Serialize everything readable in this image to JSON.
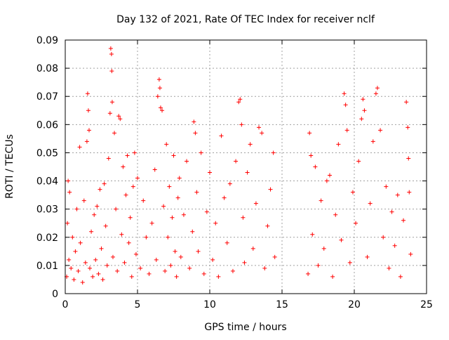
{
  "chart_data": {
    "type": "scatter",
    "title": "Day 132 of 2021, Rate Of TEC Index for receiver nclf",
    "xlabel": "GPS time / hours",
    "ylabel": "ROTI / TECUs",
    "xlim": [
      0,
      25
    ],
    "ylim": [
      0,
      0.09
    ],
    "x_ticks": [
      0,
      5,
      10,
      15,
      20,
      25
    ],
    "x_tick_labels": [
      "0",
      "5",
      "10",
      "15",
      "20",
      "25"
    ],
    "y_ticks": [
      0,
      0.01,
      0.02,
      0.03,
      0.04,
      0.05,
      0.06,
      0.07,
      0.08,
      0.09
    ],
    "y_tick_labels": [
      "0",
      "0.01",
      "0.02",
      "0.03",
      "0.04",
      "0.05",
      "0.06",
      "0.07",
      "0.08",
      "0.09"
    ],
    "grid": true,
    "marker": "+",
    "color": "#ff0000",
    "data_gaps_hours": [
      [
        14.6,
        16.7
      ]
    ],
    "series": [
      {
        "name": "ROTI",
        "points": [
          [
            0.1,
            0.006
          ],
          [
            0.15,
            0.025
          ],
          [
            0.2,
            0.04
          ],
          [
            0.25,
            0.012
          ],
          [
            0.3,
            0.036
          ],
          [
            0.4,
            0.009
          ],
          [
            0.5,
            0.02
          ],
          [
            0.6,
            0.005
          ],
          [
            0.7,
            0.015
          ],
          [
            0.8,
            0.03
          ],
          [
            0.9,
            0.008
          ],
          [
            1.0,
            0.052
          ],
          [
            1.05,
            0.018
          ],
          [
            1.2,
            0.004
          ],
          [
            1.3,
            0.033
          ],
          [
            1.4,
            0.011
          ],
          [
            1.5,
            0.054
          ],
          [
            1.55,
            0.071
          ],
          [
            1.6,
            0.065
          ],
          [
            1.65,
            0.058
          ],
          [
            1.7,
            0.009
          ],
          [
            1.8,
            0.022
          ],
          [
            1.9,
            0.006
          ],
          [
            2.0,
            0.028
          ],
          [
            2.1,
            0.012
          ],
          [
            2.2,
            0.031
          ],
          [
            2.3,
            0.007
          ],
          [
            2.4,
            0.037
          ],
          [
            2.5,
            0.016
          ],
          [
            2.6,
            0.005
          ],
          [
            2.7,
            0.039
          ],
          [
            2.8,
            0.024
          ],
          [
            2.9,
            0.01
          ],
          [
            3.0,
            0.048
          ],
          [
            3.1,
            0.064
          ],
          [
            3.15,
            0.087
          ],
          [
            3.2,
            0.085
          ],
          [
            3.22,
            0.079
          ],
          [
            3.25,
            0.068
          ],
          [
            3.3,
            0.013
          ],
          [
            3.4,
            0.057
          ],
          [
            3.5,
            0.03
          ],
          [
            3.6,
            0.008
          ],
          [
            3.7,
            0.063
          ],
          [
            3.8,
            0.062
          ],
          [
            3.9,
            0.021
          ],
          [
            4.0,
            0.045
          ],
          [
            4.1,
            0.011
          ],
          [
            4.2,
            0.035
          ],
          [
            4.3,
            0.049
          ],
          [
            4.4,
            0.018
          ],
          [
            4.5,
            0.027
          ],
          [
            4.6,
            0.006
          ],
          [
            4.7,
            0.038
          ],
          [
            4.8,
            0.05
          ],
          [
            4.9,
            0.014
          ],
          [
            5.0,
            0.041
          ],
          [
            5.2,
            0.009
          ],
          [
            5.4,
            0.033
          ],
          [
            5.6,
            0.02
          ],
          [
            5.8,
            0.007
          ],
          [
            6.0,
            0.025
          ],
          [
            6.2,
            0.044
          ],
          [
            6.3,
            0.012
          ],
          [
            6.4,
            0.07
          ],
          [
            6.5,
            0.076
          ],
          [
            6.55,
            0.073
          ],
          [
            6.6,
            0.066
          ],
          [
            6.7,
            0.065
          ],
          [
            6.8,
            0.031
          ],
          [
            6.9,
            0.008
          ],
          [
            7.0,
            0.053
          ],
          [
            7.1,
            0.02
          ],
          [
            7.2,
            0.038
          ],
          [
            7.3,
            0.01
          ],
          [
            7.4,
            0.027
          ],
          [
            7.5,
            0.049
          ],
          [
            7.6,
            0.015
          ],
          [
            7.7,
            0.006
          ],
          [
            7.8,
            0.034
          ],
          [
            7.9,
            0.041
          ],
          [
            8.0,
            0.013
          ],
          [
            8.2,
            0.028
          ],
          [
            8.4,
            0.047
          ],
          [
            8.6,
            0.009
          ],
          [
            8.8,
            0.022
          ],
          [
            8.9,
            0.061
          ],
          [
            9.0,
            0.057
          ],
          [
            9.1,
            0.036
          ],
          [
            9.2,
            0.015
          ],
          [
            9.4,
            0.05
          ],
          [
            9.6,
            0.007
          ],
          [
            9.8,
            0.029
          ],
          [
            10.0,
            0.043
          ],
          [
            10.2,
            0.012
          ],
          [
            10.4,
            0.025
          ],
          [
            10.6,
            0.006
          ],
          [
            10.8,
            0.056
          ],
          [
            11.0,
            0.034
          ],
          [
            11.2,
            0.018
          ],
          [
            11.4,
            0.039
          ],
          [
            11.6,
            0.008
          ],
          [
            11.8,
            0.047
          ],
          [
            12.0,
            0.068
          ],
          [
            12.1,
            0.069
          ],
          [
            12.2,
            0.06
          ],
          [
            12.3,
            0.027
          ],
          [
            12.4,
            0.011
          ],
          [
            12.6,
            0.043
          ],
          [
            12.8,
            0.053
          ],
          [
            13.0,
            0.016
          ],
          [
            13.2,
            0.032
          ],
          [
            13.4,
            0.059
          ],
          [
            13.6,
            0.057
          ],
          [
            13.8,
            0.009
          ],
          [
            14.0,
            0.024
          ],
          [
            14.2,
            0.037
          ],
          [
            14.4,
            0.05
          ],
          [
            14.5,
            0.013
          ],
          [
            16.8,
            0.007
          ],
          [
            16.9,
            0.057
          ],
          [
            17.0,
            0.049
          ],
          [
            17.1,
            0.021
          ],
          [
            17.3,
            0.045
          ],
          [
            17.5,
            0.01
          ],
          [
            17.7,
            0.033
          ],
          [
            17.9,
            0.016
          ],
          [
            18.1,
            0.04
          ],
          [
            18.3,
            0.042
          ],
          [
            18.5,
            0.006
          ],
          [
            18.7,
            0.028
          ],
          [
            18.9,
            0.053
          ],
          [
            19.1,
            0.019
          ],
          [
            19.3,
            0.071
          ],
          [
            19.4,
            0.067
          ],
          [
            19.5,
            0.058
          ],
          [
            19.7,
            0.011
          ],
          [
            19.9,
            0.036
          ],
          [
            20.1,
            0.025
          ],
          [
            20.3,
            0.047
          ],
          [
            20.5,
            0.062
          ],
          [
            20.6,
            0.069
          ],
          [
            20.7,
            0.065
          ],
          [
            20.9,
            0.013
          ],
          [
            21.1,
            0.032
          ],
          [
            21.3,
            0.054
          ],
          [
            21.5,
            0.071
          ],
          [
            21.6,
            0.073
          ],
          [
            21.8,
            0.058
          ],
          [
            22.0,
            0.02
          ],
          [
            22.2,
            0.038
          ],
          [
            22.4,
            0.009
          ],
          [
            22.6,
            0.029
          ],
          [
            22.8,
            0.017
          ],
          [
            23.0,
            0.035
          ],
          [
            23.2,
            0.006
          ],
          [
            23.4,
            0.026
          ],
          [
            23.6,
            0.068
          ],
          [
            23.7,
            0.059
          ],
          [
            23.75,
            0.048
          ],
          [
            23.8,
            0.036
          ],
          [
            23.9,
            0.014
          ]
        ]
      }
    ]
  }
}
